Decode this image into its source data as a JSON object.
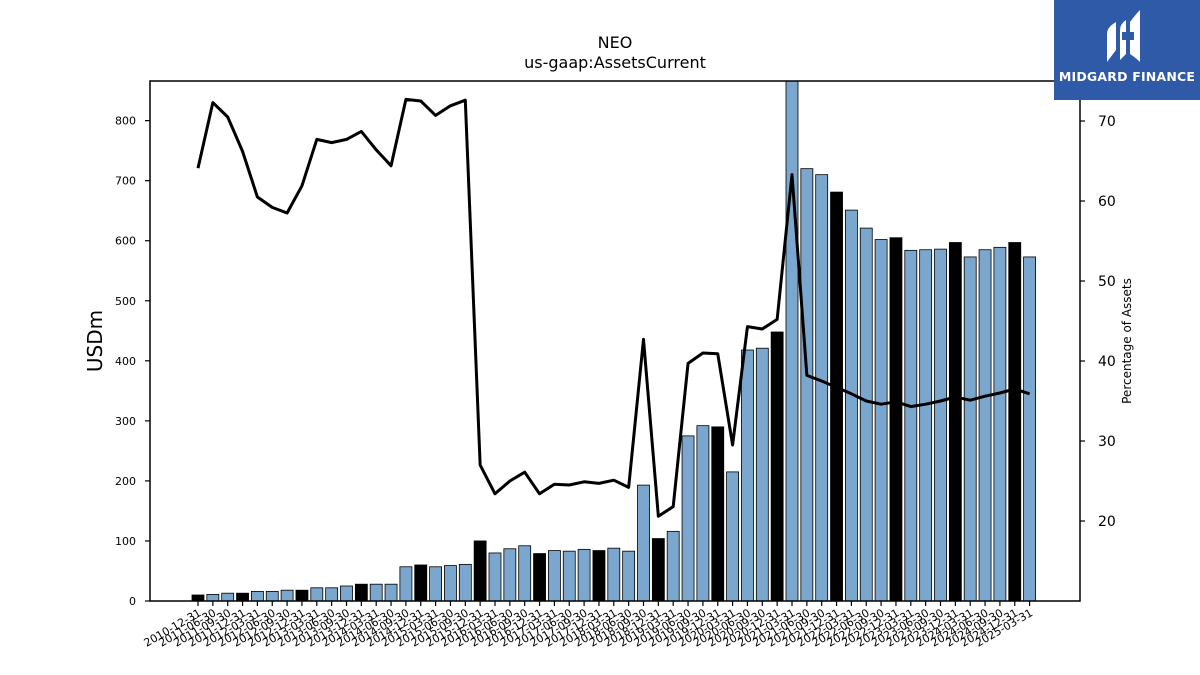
{
  "chart_data": {
    "type": "bar+line",
    "title": "NEO",
    "subtitle": "us-gaap:AssetsCurrent",
    "ylabel_left": "USDm",
    "ylabel_right": "Percentage of Assets",
    "ylim_left": [
      0,
      866
    ],
    "ylim_right": [
      10,
      75
    ],
    "yticks_left": [
      0,
      100,
      200,
      300,
      400,
      500,
      600,
      700,
      800
    ],
    "yticks_right": [
      20,
      30,
      40,
      50,
      60,
      70
    ],
    "categories": [
      "2010-12-31",
      "2011-06-30",
      "2011-09-30",
      "2011-12-31",
      "2012-03-31",
      "2012-06-30",
      "2012-09-30",
      "2012-12-31",
      "2013-03-31",
      "2013-06-30",
      "2013-09-30",
      "2013-12-31",
      "2014-03-31",
      "2014-06-30",
      "2014-09-30",
      "2014-12-31",
      "2015-03-31",
      "2015-06-30",
      "2015-09-30",
      "2015-12-31",
      "2016-03-31",
      "2016-06-30",
      "2016-09-30",
      "2016-12-31",
      "2017-03-31",
      "2017-06-30",
      "2017-09-30",
      "2017-12-31",
      "2018-03-31",
      "2018-06-30",
      "2018-09-30",
      "2018-12-31",
      "2019-03-31",
      "2019-06-30",
      "2019-09-30",
      "2019-12-31",
      "2020-03-31",
      "2020-06-30",
      "2020-09-30",
      "2020-12-31",
      "2021-03-31",
      "2021-06-30",
      "2021-09-30",
      "2021-12-31",
      "2022-03-31",
      "2022-06-30",
      "2022-09-30",
      "2022-12-31",
      "2023-03-31",
      "2023-06-30",
      "2023-09-30",
      "2023-12-31",
      "2024-03-31",
      "2024-06-30",
      "2024-09-30",
      "2024-12-31",
      "2025-03-31"
    ],
    "series": [
      {
        "name": "AssetsCurrent",
        "kind": "bar",
        "color_quarter": "#7ba7cf",
        "color_yearend": "#000000",
        "values": [
          10,
          11,
          13,
          13,
          16,
          16,
          18,
          18,
          22,
          22,
          25,
          28,
          28,
          28,
          57,
          60,
          57,
          59,
          61,
          100,
          80,
          87,
          92,
          79,
          84,
          83,
          86,
          84,
          88,
          83,
          193,
          104,
          116,
          275,
          292,
          290,
          215,
          418,
          421,
          448,
          866,
          720,
          710,
          681,
          651,
          621,
          602,
          605,
          584,
          585,
          586,
          597,
          573,
          585,
          589,
          597,
          573
        ],
        "year_end": [
          true,
          false,
          false,
          true,
          false,
          false,
          false,
          true,
          false,
          false,
          false,
          true,
          false,
          false,
          false,
          true,
          false,
          false,
          false,
          true,
          false,
          false,
          false,
          true,
          false,
          false,
          false,
          true,
          false,
          false,
          false,
          true,
          false,
          false,
          false,
          true,
          false,
          false,
          false,
          true,
          false,
          false,
          false,
          true,
          false,
          false,
          false,
          true,
          false,
          false,
          false,
          true,
          false,
          false,
          false,
          true,
          false
        ]
      },
      {
        "name": "Percentage of Assets",
        "kind": "line",
        "axis": "right",
        "color": "#000000",
        "values": [
          64.1,
          72.3,
          70.5,
          66.2,
          60.5,
          59.2,
          58.5,
          61.9,
          67.7,
          67.3,
          67.7,
          68.7,
          66.4,
          64.4,
          72.7,
          72.5,
          70.7,
          71.9,
          72.6,
          27.0,
          23.4,
          25.0,
          26.1,
          23.4,
          24.6,
          24.5,
          24.9,
          24.7,
          25.1,
          24.2,
          42.7,
          20.6,
          21.8,
          39.7,
          41.0,
          40.9,
          29.5,
          44.3,
          44.0,
          45.2,
          63.3,
          38.2,
          37.5,
          36.7,
          35.9,
          35.0,
          34.6,
          34.9,
          34.3,
          34.6,
          35.0,
          35.5,
          35.1,
          35.6,
          36.0,
          36.5,
          35.9
        ]
      }
    ],
    "grid": false,
    "legend": "none"
  },
  "logo": {
    "text": "MIDGARD FINANCE",
    "background": "#2f5aa8"
  }
}
